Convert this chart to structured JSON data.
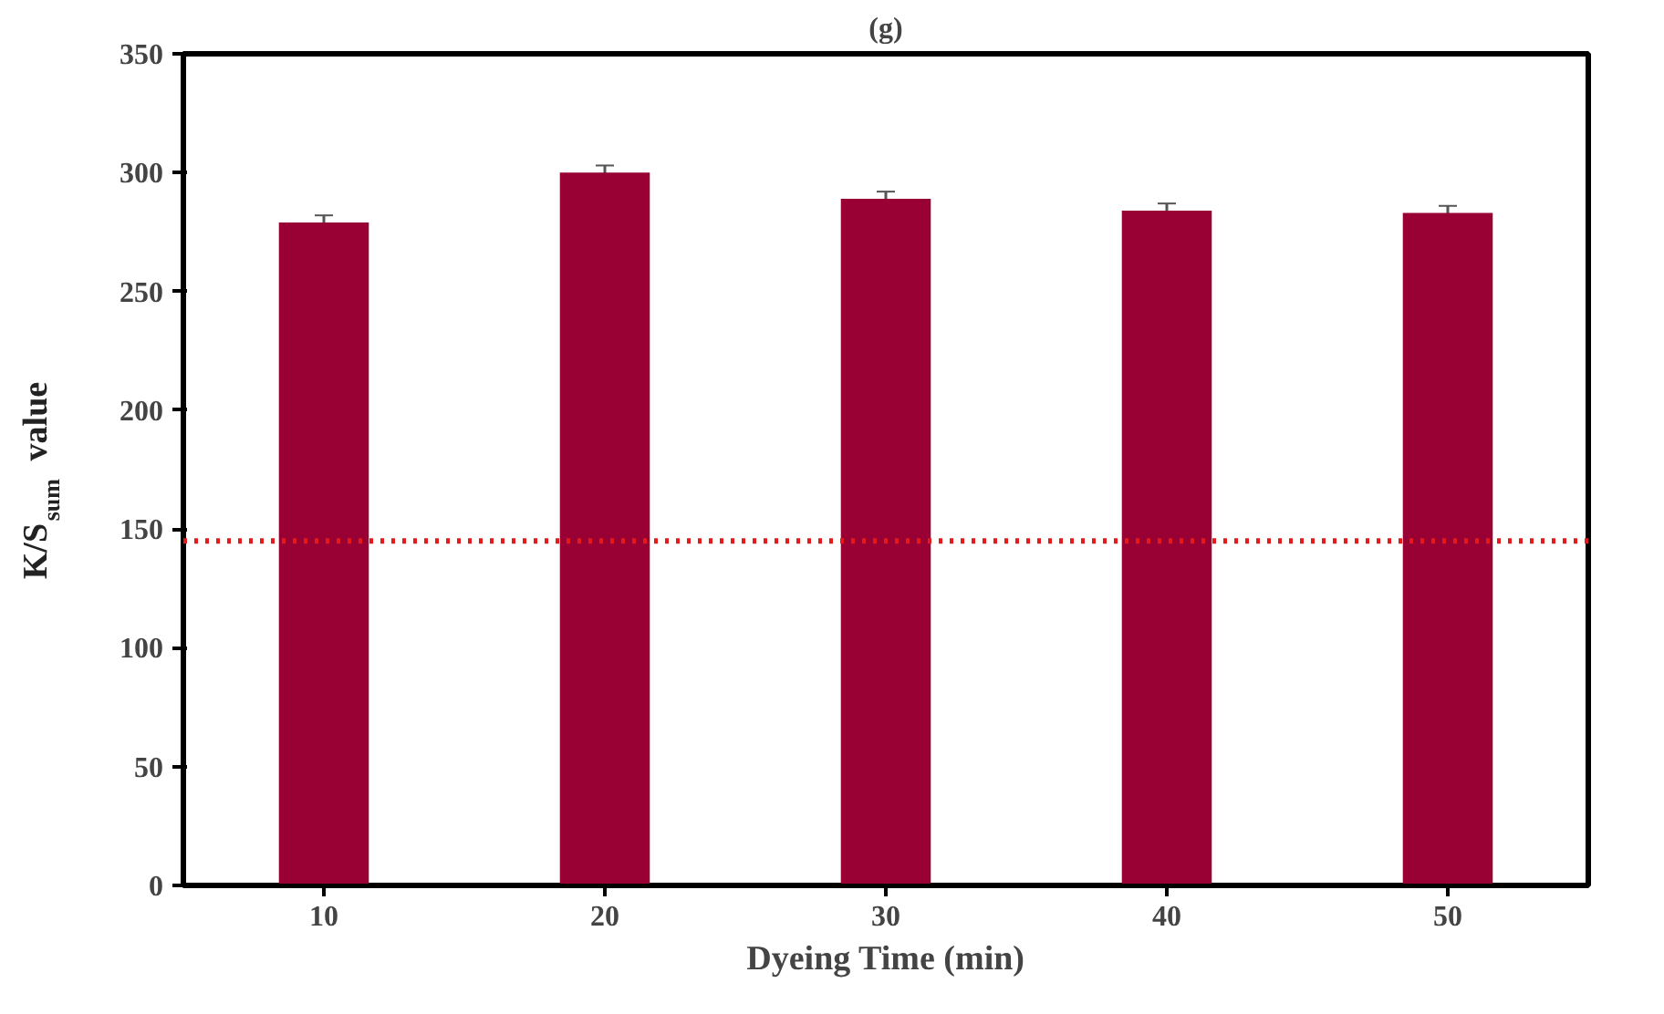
{
  "chart_data": {
    "type": "bar",
    "title": "(g)",
    "xlabel": "Dyeing Time (min)",
    "ylabel": "K/S$_{sum}$ value",
    "categories": [
      "10",
      "20",
      "30",
      "40",
      "50"
    ],
    "series": [
      {
        "color": "#990033",
        "values": [
          279,
          300,
          289,
          284,
          283
        ],
        "errors": [
          3,
          3,
          3,
          3,
          3
        ]
      }
    ],
    "ylim": [
      0,
      350
    ],
    "yticks": [
      0,
      50,
      100,
      150,
      200,
      250,
      300,
      350
    ],
    "grid": false,
    "ref_lines": [
      {
        "axis": "y",
        "value": 145,
        "color": "#e31a1c",
        "line_style": "dotted"
      }
    ]
  }
}
